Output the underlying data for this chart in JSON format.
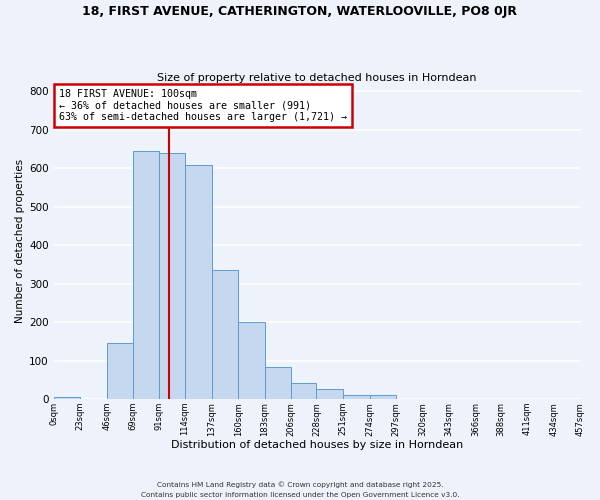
{
  "title_line1": "18, FIRST AVENUE, CATHERINGTON, WATERLOOVILLE, PO8 0JR",
  "title_line2": "Size of property relative to detached houses in Horndean",
  "xlabel": "Distribution of detached houses by size in Horndean",
  "ylabel": "Number of detached properties",
  "bin_edges": [
    0,
    23,
    46,
    69,
    91,
    114,
    137,
    160,
    183,
    206,
    228,
    251,
    274,
    297,
    320,
    343,
    366,
    388,
    411,
    434,
    457
  ],
  "bin_counts": [
    5,
    0,
    145,
    645,
    640,
    610,
    335,
    200,
    83,
    42,
    27,
    10,
    10,
    0,
    0,
    0,
    0,
    0,
    0,
    0
  ],
  "bar_color": "#c5d8f0",
  "bar_edge_color": "#5b9bd5",
  "property_size": 100,
  "vline_color": "#cc0000",
  "annotation_text": "18 FIRST AVENUE: 100sqm\n← 36% of detached houses are smaller (991)\n63% of semi-detached houses are larger (1,721) →",
  "annotation_box_color": "#ffffff",
  "annotation_box_edge_color": "#cc0000",
  "ylim": [
    0,
    820
  ],
  "yticks": [
    0,
    100,
    200,
    300,
    400,
    500,
    600,
    700,
    800
  ],
  "xtick_labels": [
    "0sqm",
    "23sqm",
    "46sqm",
    "69sqm",
    "91sqm",
    "114sqm",
    "137sqm",
    "160sqm",
    "183sqm",
    "206sqm",
    "228sqm",
    "251sqm",
    "274sqm",
    "297sqm",
    "320sqm",
    "343sqm",
    "366sqm",
    "388sqm",
    "411sqm",
    "434sqm",
    "457sqm"
  ],
  "footer_line1": "Contains HM Land Registry data © Crown copyright and database right 2025.",
  "footer_line2": "Contains public sector information licensed under the Open Government Licence v3.0.",
  "background_color": "#eef2fa",
  "grid_color": "#ffffff"
}
